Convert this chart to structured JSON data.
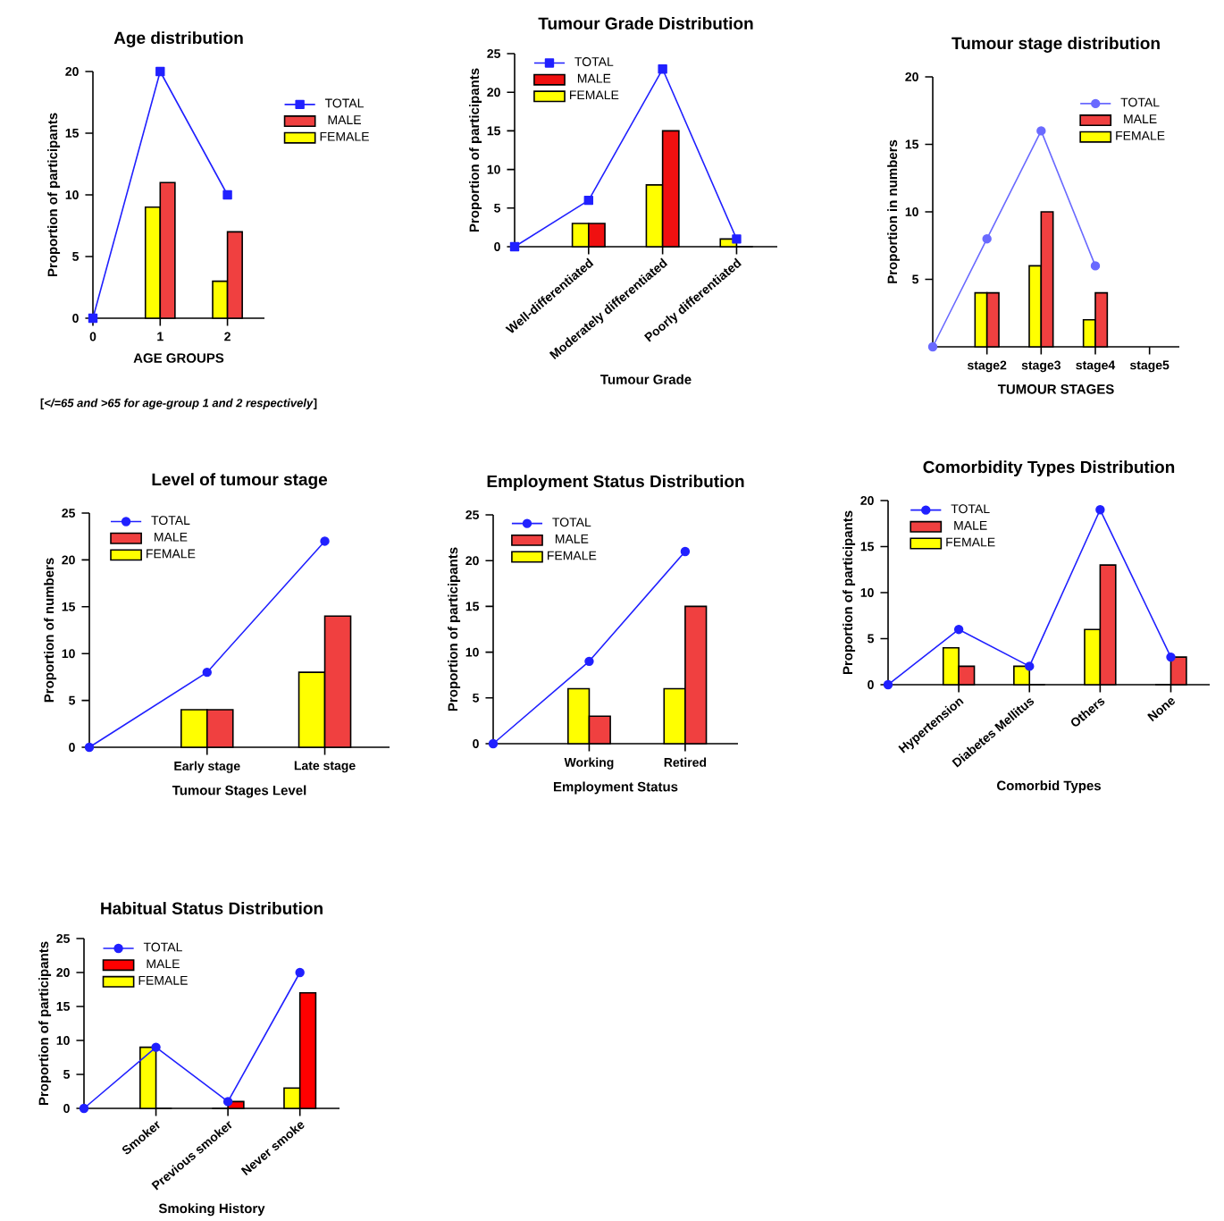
{
  "chart_data": [
    {
      "type": "bar",
      "title": "Age distribution",
      "xlabel": "AGE GROUPS",
      "ylabel": "Proportion of participants",
      "annotations": [
        "[*</=65 and >65 for age-group 1 and 2 respectively*]"
      ],
      "categories": [
        "0",
        "1",
        "2"
      ],
      "ylim": [
        0,
        20
      ],
      "yticks": [
        0,
        5,
        10,
        15,
        20
      ],
      "legend": "right",
      "marker": "square",
      "series": [
        {
          "name": "FEMALE",
          "color": "#ffff00",
          "values": [
            null,
            9,
            3
          ]
        },
        {
          "name": "MALE",
          "color": "#f04040",
          "values": [
            null,
            11,
            7
          ]
        },
        {
          "name": "TOTAL",
          "type": "line",
          "color": "#2020ff",
          "values": [
            0,
            20,
            10
          ]
        }
      ]
    },
    {
      "type": "bar",
      "title": "Tumour Grade Distribution",
      "xlabel": "Tumour Grade",
      "ylabel": "Proportion of participants",
      "categories": [
        null,
        "Well-differentiated",
        "Moderately differentiated",
        "Poorly differentiated"
      ],
      "ylim": [
        0,
        25
      ],
      "yticks": [
        0,
        5,
        10,
        15,
        20,
        25
      ],
      "legend": "top left",
      "marker": "square",
      "series": [
        {
          "name": "FEMALE",
          "color": "#ffff00",
          "values": [
            null,
            3,
            8,
            1
          ]
        },
        {
          "name": "MALE",
          "color": "#f01010",
          "values": [
            null,
            3,
            15,
            0
          ]
        },
        {
          "name": "TOTAL",
          "type": "line",
          "color": "#2020ff",
          "values": [
            0,
            6,
            23,
            1
          ]
        }
      ]
    },
    {
      "type": "bar",
      "title": "Tumour stage distribution",
      "xlabel": "TUMOUR STAGES",
      "ylabel": "Proportion in numbers",
      "categories": [
        null,
        "stage2",
        "stage3",
        "stage4",
        "stage5"
      ],
      "ylim": [
        0,
        20
      ],
      "yticks": [
        5,
        10,
        15,
        20
      ],
      "legend": "top right",
      "marker": "circle",
      "series": [
        {
          "name": "FEMALE",
          "color": "#ffff00",
          "values": [
            null,
            4,
            6,
            2,
            null
          ]
        },
        {
          "name": "MALE",
          "color": "#f04040",
          "values": [
            null,
            4,
            10,
            4,
            null
          ]
        },
        {
          "name": "TOTAL",
          "type": "line",
          "color": "#6a6aff",
          "values": [
            0,
            8,
            16,
            6,
            null
          ]
        }
      ]
    },
    {
      "type": "bar",
      "title": "Level of tumour stage",
      "xlabel": "Tumour Stages Level",
      "ylabel": "Proportion of numbers",
      "categories": [
        null,
        "Early stage",
        "Late stage"
      ],
      "ylim": [
        0,
        25
      ],
      "yticks": [
        0,
        5,
        10,
        15,
        20,
        25
      ],
      "legend": "top left",
      "marker": "circle",
      "series": [
        {
          "name": "FEMALE",
          "color": "#ffff00",
          "values": [
            null,
            4,
            8
          ]
        },
        {
          "name": "MALE",
          "color": "#f04040",
          "values": [
            null,
            4,
            14
          ]
        },
        {
          "name": "TOTAL",
          "type": "line",
          "color": "#2020ff",
          "values": [
            0,
            8,
            22
          ]
        }
      ]
    },
    {
      "type": "bar",
      "title": "Employment Status Distribution",
      "xlabel": "Employment Status",
      "ylabel": "Proportion of participants",
      "categories": [
        null,
        "Working",
        "Retired"
      ],
      "ylim": [
        0,
        25
      ],
      "yticks": [
        0,
        5,
        10,
        15,
        20,
        25
      ],
      "legend": "top left",
      "marker": "circle",
      "series": [
        {
          "name": "FEMALE",
          "color": "#ffff00",
          "values": [
            null,
            6,
            6
          ]
        },
        {
          "name": "MALE",
          "color": "#f04040",
          "values": [
            null,
            3,
            15
          ]
        },
        {
          "name": "TOTAL",
          "type": "line",
          "color": "#2020ff",
          "values": [
            0,
            9,
            21
          ]
        }
      ]
    },
    {
      "type": "bar",
      "title": "Comorbidity Types Distribution",
      "xlabel": "Comorbid Types",
      "ylabel": "Proportion of participants",
      "categories": [
        null,
        "Hypertension",
        "Diabetes Mellitus",
        "Others",
        "None"
      ],
      "ylim": [
        0,
        20
      ],
      "yticks": [
        0,
        5,
        10,
        15,
        20
      ],
      "legend": "top left",
      "marker": "circle",
      "series": [
        {
          "name": "FEMALE",
          "color": "#ffff00",
          "values": [
            null,
            4,
            2,
            6,
            0
          ]
        },
        {
          "name": "MALE",
          "color": "#f04040",
          "values": [
            null,
            2,
            0,
            13,
            3
          ]
        },
        {
          "name": "TOTAL",
          "type": "line",
          "color": "#2020ff",
          "values": [
            0,
            6,
            2,
            19,
            3
          ]
        }
      ]
    },
    {
      "type": "bar",
      "title": "Habitual Status Distribution",
      "xlabel": "Smoking History",
      "ylabel": "Proportion of participants",
      "categories": [
        null,
        "Smoker",
        "Previous smoker",
        "Never smoke"
      ],
      "ylim": [
        0,
        25
      ],
      "yticks": [
        0,
        5,
        10,
        15,
        20,
        25
      ],
      "legend": "top left",
      "marker": "circle",
      "series": [
        {
          "name": "FEMALE",
          "color": "#ffff00",
          "values": [
            null,
            9,
            0,
            3
          ]
        },
        {
          "name": "MALE",
          "color": "#ff0000",
          "values": [
            null,
            0,
            1,
            17
          ]
        },
        {
          "name": "TOTAL",
          "type": "line",
          "color": "#2020ff",
          "values": [
            0,
            9,
            1,
            20
          ]
        }
      ]
    }
  ]
}
